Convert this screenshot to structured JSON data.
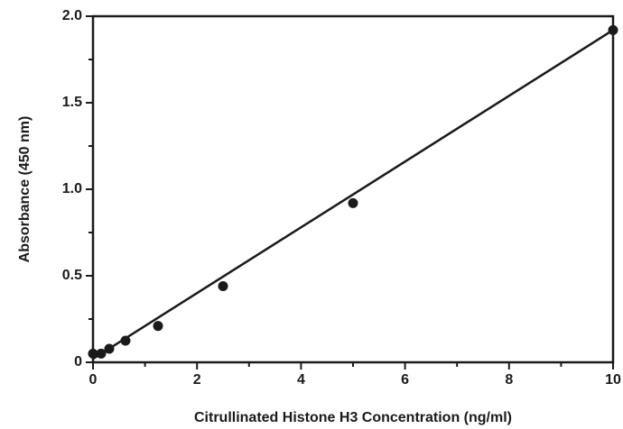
{
  "chart_data": {
    "type": "scatter",
    "x_label": "Citrullinated Histone H3 Concentration (ng/ml)",
    "y_label": "Absorbance (450 nm)",
    "x": [
      0,
      0.156,
      0.3125,
      0.625,
      1.25,
      2.5,
      5,
      10
    ],
    "values": [
      0.05,
      0.05,
      0.078,
      0.125,
      0.21,
      0.44,
      0.92,
      1.92
    ],
    "color": "#1a1a1a",
    "fit": {
      "x": [
        0,
        10
      ],
      "values": [
        0.02,
        1.92
      ],
      "color": "#1a1a1a"
    },
    "xlim": [
      0,
      10
    ],
    "xticks": [
      0,
      2,
      4,
      6,
      8,
      10
    ],
    "xminor": [
      1,
      3,
      5,
      7,
      9
    ],
    "ylim": [
      0,
      2
    ],
    "yticks": [
      {
        "value": 0,
        "label": "0"
      },
      0.5,
      {
        "value": 1,
        "label": "1.0"
      },
      1.5,
      {
        "value": 2,
        "label": "2.0"
      }
    ],
    "yminor": [
      0.25,
      0.75,
      1.25,
      1.75
    ],
    "grid": false
  }
}
